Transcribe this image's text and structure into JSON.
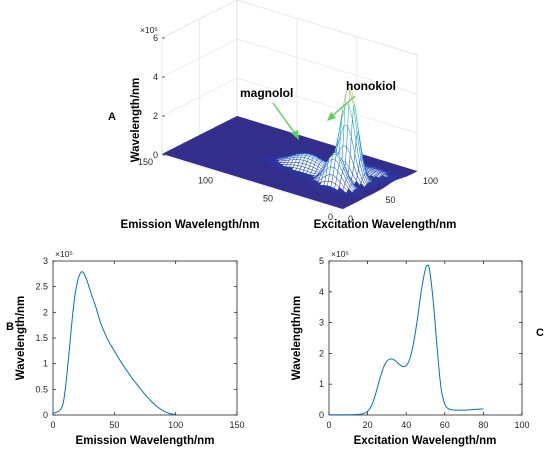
{
  "chart_data": [
    {
      "type": "surface",
      "panel_label": "A",
      "xlabel": "Emission Wavelength/nm",
      "ylabel": "Excitation Wavelength/nm",
      "zlabel": "Wavelength/nm",
      "x_range": [
        0,
        150
      ],
      "y_range": [
        0,
        100
      ],
      "z_range": [
        0,
        6
      ],
      "x_ticks": [
        0,
        50,
        100,
        150
      ],
      "y_ticks": [
        0,
        50,
        100
      ],
      "z_ticks": [
        0,
        2,
        4,
        6
      ],
      "z_exponent": "×10⁵",
      "grid": true,
      "colormap": "parula",
      "annotations": [
        {
          "text": "magnolol",
          "x": 25,
          "y": 32,
          "z": 1.8
        },
        {
          "text": "honokiol",
          "x": 25,
          "y": 50,
          "z": 4.8
        }
      ],
      "peaks": [
        {
          "x": 25,
          "y": 50,
          "z": 4.8
        },
        {
          "x": 25,
          "y": 32,
          "z": 1.8
        }
      ]
    },
    {
      "type": "line",
      "panel_label": "B",
      "xlabel": "Emission Wavelength/nm",
      "ylabel": "Wavelength/nm",
      "x_range": [
        0,
        150
      ],
      "y_range": [
        0,
        3
      ],
      "x_ticks": [
        0,
        50,
        100,
        150
      ],
      "y_ticks": [
        0,
        0.5,
        1,
        1.5,
        2,
        2.5,
        3
      ],
      "y_tick_labels": [
        "0",
        "0.5",
        "1",
        "1.5",
        "2",
        "2.5",
        "3"
      ],
      "y_exponent": "×10⁵",
      "line_color": "#0072BD",
      "series": [
        {
          "x": [
            0,
            5,
            8,
            10,
            12,
            14,
            16,
            18,
            20,
            22,
            24,
            26,
            28,
            30,
            32,
            35,
            38,
            40,
            45,
            50,
            55,
            60,
            65,
            70,
            75,
            80,
            85,
            90,
            95,
            100
          ],
          "values": [
            0.03,
            0.08,
            0.2,
            0.5,
            0.95,
            1.45,
            1.95,
            2.35,
            2.6,
            2.75,
            2.79,
            2.72,
            2.6,
            2.45,
            2.3,
            2.1,
            1.85,
            1.72,
            1.45,
            1.25,
            1.05,
            0.87,
            0.7,
            0.55,
            0.4,
            0.27,
            0.16,
            0.08,
            0.03,
            0.01
          ]
        }
      ]
    },
    {
      "type": "line",
      "panel_label": "C",
      "xlabel": "Excitation Wavelength/nm",
      "ylabel": "Wavelength/nm",
      "x_range": [
        0,
        100
      ],
      "y_range": [
        0,
        5
      ],
      "x_ticks": [
        0,
        20,
        40,
        60,
        80,
        100
      ],
      "y_ticks": [
        0,
        1,
        2,
        3,
        4,
        5
      ],
      "y_exponent": "×10⁵",
      "line_color": "#0072BD",
      "series": [
        {
          "x": [
            0,
            10,
            15,
            18,
            20,
            22,
            24,
            26,
            28,
            30,
            32,
            34,
            36,
            38,
            40,
            42,
            44,
            46,
            48,
            50,
            51,
            52,
            54,
            56,
            58,
            60,
            62,
            65,
            70,
            75,
            80
          ],
          "values": [
            0.01,
            0.01,
            0.02,
            0.05,
            0.12,
            0.3,
            0.65,
            1.1,
            1.5,
            1.75,
            1.82,
            1.78,
            1.67,
            1.58,
            1.6,
            1.85,
            2.4,
            3.2,
            4.1,
            4.75,
            4.85,
            4.75,
            3.7,
            2.2,
            0.9,
            0.35,
            0.2,
            0.16,
            0.16,
            0.18,
            0.2
          ]
        }
      ]
    }
  ]
}
